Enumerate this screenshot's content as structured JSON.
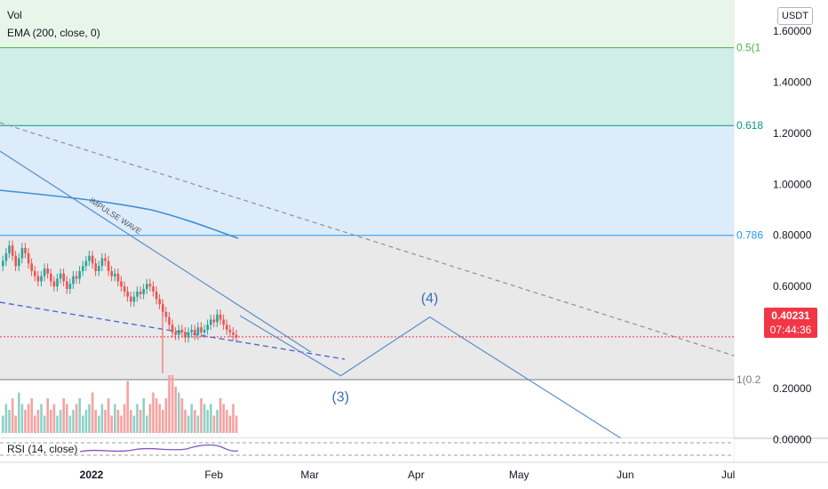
{
  "chart": {
    "indicators": {
      "vol": "Vol",
      "ema": "EMA (200, close, 0)",
      "rsi": "RSI (14, close)"
    },
    "currency": "USDT",
    "price_axis": [
      "1.60000",
      "1.40000",
      "1.20000",
      "1.00000",
      "0.80000",
      "0.60000",
      "0.20000",
      "0.00000"
    ],
    "time_axis": [
      "2022",
      "Feb",
      "Mar",
      "Apr",
      "May",
      "Jun",
      "Jul"
    ],
    "last_price": "0.40231",
    "countdown": "07:44:36",
    "fib_labels": [
      "0.5(1",
      "0.618",
      "0.786",
      "1(0.2"
    ],
    "wave_labels": [
      "(3)",
      "(4)"
    ],
    "annotation": "IMPULSE WAVE",
    "colors": {
      "fib_0_5": "#4caf50",
      "fib_0_618": "#089981",
      "fib_0_786": "#2196f3",
      "fib_1": "#787b86",
      "up": "#26a69a",
      "down": "#ef5350",
      "line_blue": "#5b8ec9",
      "last_price": "#f23645"
    }
  },
  "chart_data": {
    "type": "candlestick",
    "title": "",
    "xlabel": "",
    "ylabel": "",
    "x_ticks": [
      "2022",
      "Feb",
      "Mar",
      "Apr",
      "May",
      "Jun",
      "Jul"
    ],
    "ylim": [
      -0.06,
      1.7
    ],
    "y_ticks": [
      1.6,
      1.4,
      1.2,
      1.0,
      0.8,
      0.6,
      0.2,
      0.0
    ],
    "last_price": 0.40231,
    "series_close": [
      0.7,
      0.73,
      0.76,
      0.72,
      0.68,
      0.71,
      0.75,
      0.73,
      0.69,
      0.66,
      0.64,
      0.62,
      0.64,
      0.67,
      0.65,
      0.62,
      0.6,
      0.63,
      0.65,
      0.62,
      0.59,
      0.61,
      0.64,
      0.63,
      0.66,
      0.68,
      0.7,
      0.72,
      0.69,
      0.66,
      0.68,
      0.71,
      0.7,
      0.66,
      0.64,
      0.65,
      0.62,
      0.6,
      0.58,
      0.56,
      0.54,
      0.56,
      0.58,
      0.57,
      0.59,
      0.61,
      0.6,
      0.58,
      0.55,
      0.53,
      0.5,
      0.48,
      0.45,
      0.42,
      0.41,
      0.43,
      0.42,
      0.4,
      0.42,
      0.43,
      0.41,
      0.44,
      0.42,
      0.43,
      0.45,
      0.47,
      0.46,
      0.49,
      0.47,
      0.45,
      0.43,
      0.42,
      0.41,
      0.4
    ],
    "volume": [
      0.3,
      0.5,
      0.4,
      0.6,
      0.3,
      0.7,
      0.5,
      0.4,
      0.5,
      0.6,
      0.3,
      0.4,
      0.5,
      0.3,
      0.6,
      0.4,
      0.5,
      0.3,
      0.4,
      0.6,
      0.5,
      0.3,
      0.4,
      0.5,
      0.6,
      0.3,
      0.4,
      0.5,
      0.7,
      0.4,
      0.3,
      0.5,
      0.4,
      0.6,
      0.3,
      0.5,
      0.4,
      0.3,
      0.5,
      0.9,
      0.4,
      0.3,
      0.5,
      0.4,
      0.6,
      0.3,
      0.5,
      0.7,
      0.6,
      0.5,
      0.4,
      0.6,
      1.0,
      1.0,
      0.8,
      0.7,
      0.6,
      0.4,
      0.3,
      0.5,
      0.4,
      0.3,
      0.6,
      0.5,
      0.4,
      0.5,
      0.3,
      0.4,
      0.6,
      0.5,
      0.4,
      0.3,
      0.5,
      0.3
    ],
    "fib_levels": [
      {
        "label": "0.5(1",
        "price": 1.535
      },
      {
        "label": "0.618",
        "price": 1.23
      },
      {
        "label": "0.786",
        "price": 0.8
      },
      {
        "label": "1(0.2",
        "price": 0.235
      }
    ],
    "wave_path": [
      {
        "date": "2022-03-10",
        "price": 0.25,
        "label": "(3)"
      },
      {
        "date": "2022-04-05",
        "price": 0.48,
        "label": "(4)"
      },
      {
        "date": "2022-06-05",
        "price": -0.04,
        "label": ""
      }
    ],
    "grid": true
  }
}
